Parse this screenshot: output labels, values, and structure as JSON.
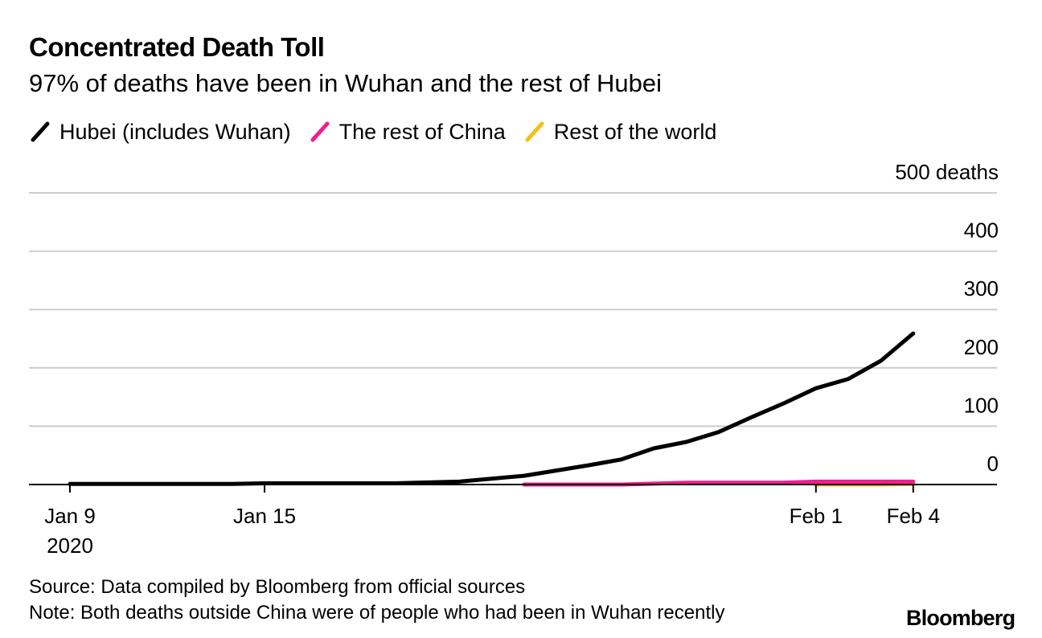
{
  "title": "Concentrated Death Toll",
  "subtitle": "97% of deaths have been in Wuhan and the rest of Hubei",
  "footer": {
    "source": "Source: Data compiled by Bloomberg from official sources",
    "note": "Note: Both deaths outside China were of people who had been in Wuhan recently",
    "logo": "Bloomberg"
  },
  "chart_data": {
    "type": "line",
    "title": "Concentrated Death Toll",
    "subtitle": "97% of deaths have been in Wuhan and the rest of Hubei",
    "xlabel": "",
    "ylabel": "deaths",
    "ylim": [
      0,
      500
    ],
    "yticks": [
      0,
      100,
      200,
      300,
      400,
      500
    ],
    "ytick_labels": [
      "0",
      "100",
      "200",
      "300",
      "400",
      "500 deaths"
    ],
    "x_start": "2020-01-09",
    "xlim_days": [
      -1,
      28
    ],
    "xticks": [
      {
        "day": 0,
        "label": "Jan 9",
        "sublabel": "2020"
      },
      {
        "day": 6,
        "label": "Jan 15",
        "sublabel": ""
      },
      {
        "day": 23,
        "label": "Feb 1",
        "sublabel": ""
      },
      {
        "day": 26,
        "label": "Feb 4",
        "sublabel": ""
      }
    ],
    "legend_position": "top-left",
    "grid": true,
    "series": [
      {
        "name": "Hubei (includes Wuhan)",
        "color": "#000000",
        "x": [
          0,
          5,
          6,
          10,
          12,
          14,
          16,
          17,
          18,
          19,
          20,
          21,
          22,
          23,
          24,
          25,
          26
        ],
        "values": [
          1,
          1,
          2,
          2,
          5,
          15,
          33,
          43,
          62,
          73,
          90,
          115,
          139,
          165,
          181,
          212,
          259
        ]
      },
      {
        "name": "The rest of China",
        "color": "#ee1e8f",
        "x": [
          14,
          15,
          17,
          19,
          22,
          23,
          26
        ],
        "values": [
          0,
          0,
          0,
          3,
          3,
          5,
          5
        ]
      },
      {
        "name": "Rest of the world",
        "color": "#f6bd16",
        "x": [
          23,
          25,
          26
        ],
        "values": [
          0,
          0,
          1
        ]
      }
    ]
  }
}
